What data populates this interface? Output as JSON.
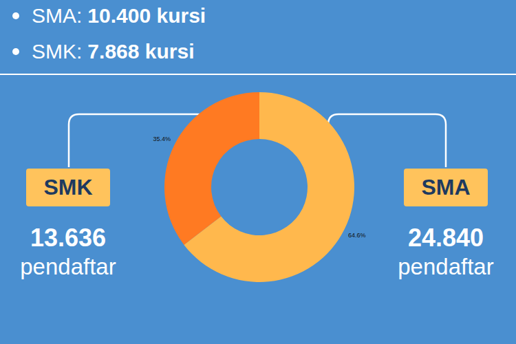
{
  "header": {
    "items": [
      {
        "label": "SMA:",
        "value": "10.400 kursi"
      },
      {
        "label": "SMK:",
        "value": "7.868 kursi"
      }
    ]
  },
  "chart_data": {
    "type": "pie",
    "categories": [
      "SMK",
      "SMA"
    ],
    "values": [
      35.4,
      64.6
    ],
    "value_labels": [
      "35.4%",
      "64.6%"
    ],
    "data_labels": true,
    "colors": [
      "#ff7a22",
      "#ffb84d"
    ]
  },
  "callouts": [
    {
      "count": "13.636",
      "unit": "pendaftar"
    },
    {
      "count": "24.840",
      "unit": "pendaftar"
    }
  ]
}
